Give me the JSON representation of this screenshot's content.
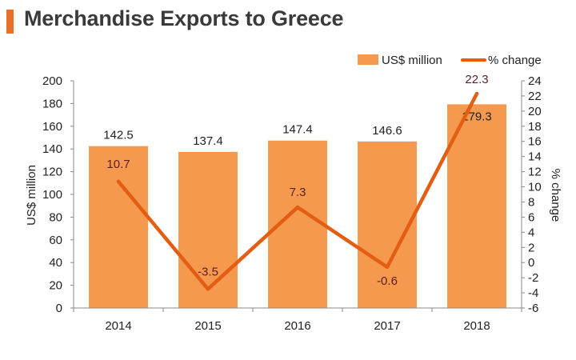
{
  "header": {
    "title": "Merchandise Exports to Greece"
  },
  "colors": {
    "bar": "#f5994e",
    "line": "#e35d12",
    "title_accent": "#e8702a",
    "axis": "#888888",
    "text": "#222222",
    "line_label": "#5a1f1f"
  },
  "chart_data": {
    "type": "bar",
    "title": "Merchandise Exports to Greece",
    "categories": [
      "2014",
      "2015",
      "2016",
      "2017",
      "2018"
    ],
    "series": [
      {
        "name": "US$ million",
        "type": "bar",
        "axis": "left",
        "values": [
          142.5,
          137.4,
          147.4,
          146.6,
          179.3
        ],
        "labels": [
          "142.5",
          "137.4",
          "147.4",
          "146.6",
          "179.3"
        ]
      },
      {
        "name": "% change",
        "type": "line",
        "axis": "right",
        "values": [
          10.7,
          -3.5,
          7.3,
          -0.6,
          22.3
        ],
        "labels": [
          "10.7",
          "-3.5",
          "7.3",
          "-0.6",
          "22.3"
        ]
      }
    ],
    "y_left": {
      "label": "US$ million",
      "range": [
        0,
        200
      ],
      "ticks": [
        "0",
        "20",
        "40",
        "60",
        "80",
        "100",
        "120",
        "140",
        "160",
        "180",
        "200"
      ]
    },
    "y_right": {
      "label": "% change",
      "range": [
        -6,
        24
      ],
      "ticks": [
        "-6",
        "-4",
        "-2",
        "0",
        "2",
        "4",
        "6",
        "8",
        "10",
        "12",
        "14",
        "16",
        "18",
        "20",
        "22",
        "24"
      ]
    },
    "grid": false,
    "legend_position": "top-right"
  }
}
